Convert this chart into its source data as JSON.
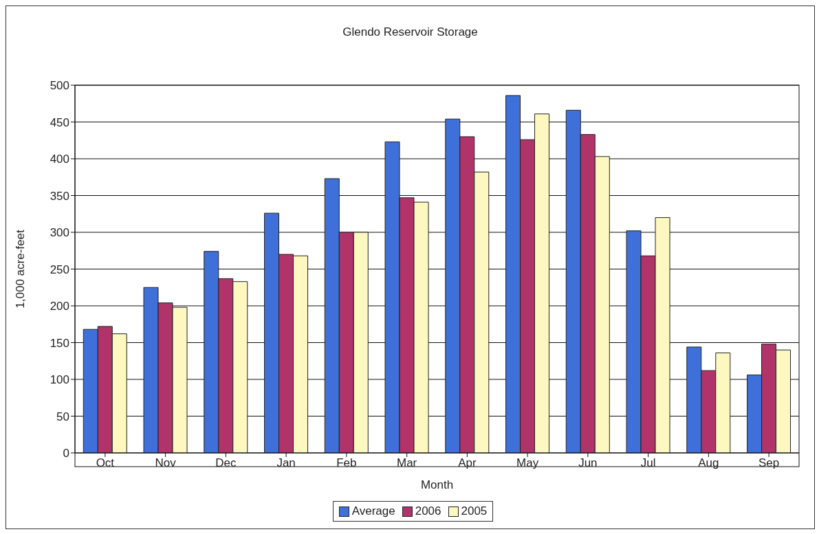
{
  "chart_data": {
    "type": "bar",
    "title": "Glendo Reservoir Storage",
    "xlabel": "Month",
    "ylabel": "1,000 acre-feet",
    "categories": [
      "Oct",
      "Nov",
      "Dec",
      "Jan",
      "Feb",
      "Mar",
      "Apr",
      "May",
      "Jun",
      "Jul",
      "Aug",
      "Sep"
    ],
    "series": [
      {
        "name": "Average",
        "color": "#3f6fd8",
        "values": [
          168,
          225,
          274,
          326,
          373,
          423,
          454,
          486,
          466,
          302,
          144,
          106
        ]
      },
      {
        "name": "2006",
        "color": "#b0336a",
        "values": [
          172,
          204,
          237,
          270,
          300,
          347,
          430,
          426,
          433,
          268,
          112,
          148
        ]
      },
      {
        "name": "2005",
        "color": "#fdf8c0",
        "values": [
          162,
          198,
          233,
          268,
          300,
          341,
          382,
          461,
          403,
          320,
          136,
          140
        ]
      }
    ],
    "ylim": [
      0,
      500
    ],
    "yticks": [
      0,
      50,
      100,
      150,
      200,
      250,
      300,
      350,
      400,
      450,
      500
    ],
    "grid": "y",
    "legend": "bottom"
  }
}
